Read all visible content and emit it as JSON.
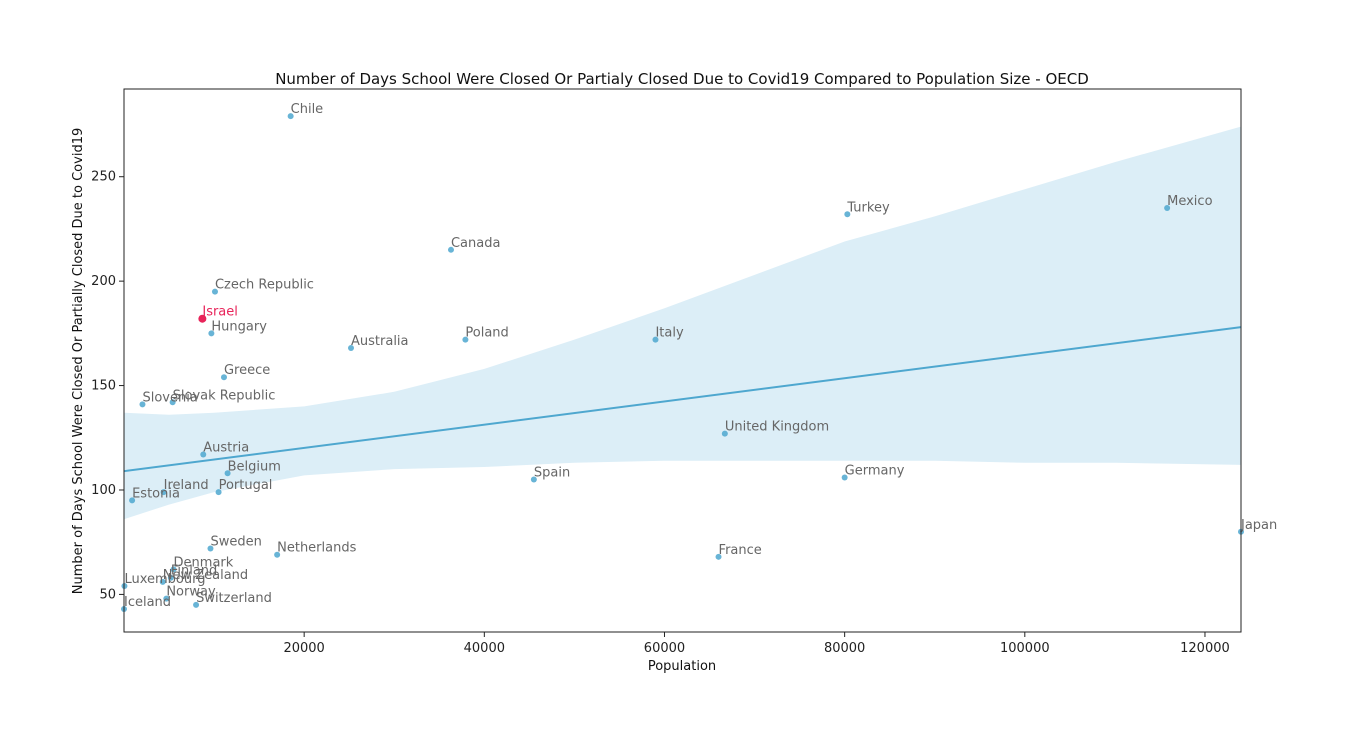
{
  "chart_data": {
    "type": "scatter",
    "title": "Number of Days School Were Closed Or Partialy Closed Due to Covid19 Compared to Population Size - OECD",
    "xlabel": "Population",
    "ylabel": "Number of Days School Were Closed Or Partially Closed Due to Covid19",
    "xlim": [
      0,
      124000
    ],
    "ylim": [
      32,
      292
    ],
    "xticks": [
      20000,
      40000,
      60000,
      80000,
      100000,
      120000
    ],
    "yticks": [
      50,
      100,
      150,
      200,
      250
    ],
    "grid": false,
    "colors": {
      "point": "#4ea7cf",
      "highlight": "#e8245a",
      "label": "#666666",
      "band": "#dceef7",
      "line": "#4ea7cf"
    },
    "regression": {
      "x": [
        0,
        124000
      ],
      "y": [
        109,
        178
      ]
    },
    "confidence_band": {
      "x": [
        0,
        5000,
        10000,
        20000,
        30000,
        40000,
        50000,
        60000,
        70000,
        80000,
        90000,
        100000,
        110000,
        124000
      ],
      "upper": [
        137,
        136,
        137,
        140,
        147,
        158,
        172,
        187,
        203,
        219,
        231,
        244,
        257,
        274
      ],
      "lower": [
        86,
        93,
        99,
        107,
        110,
        111,
        113,
        114,
        114,
        114,
        114,
        113,
        113,
        112
      ]
    },
    "points": [
      {
        "label": "Chile",
        "x": 18500,
        "y": 279
      },
      {
        "label": "Mexico",
        "x": 115800,
        "y": 235
      },
      {
        "label": "Turkey",
        "x": 80300,
        "y": 232
      },
      {
        "label": "Canada",
        "x": 36300,
        "y": 215
      },
      {
        "label": "Czech Republic",
        "x": 10100,
        "y": 195
      },
      {
        "label": "Israel",
        "x": 8700,
        "y": 182,
        "highlight": true
      },
      {
        "label": "Hungary",
        "x": 9700,
        "y": 175
      },
      {
        "label": "Poland",
        "x": 37900,
        "y": 172
      },
      {
        "label": "Italy",
        "x": 59000,
        "y": 172
      },
      {
        "label": "Australia",
        "x": 25200,
        "y": 168
      },
      {
        "label": "Greece",
        "x": 11100,
        "y": 154
      },
      {
        "label": "Slovak Republic",
        "x": 5400,
        "y": 142
      },
      {
        "label": "Slovenia",
        "x": 2050,
        "y": 141
      },
      {
        "label": "United Kingdom",
        "x": 66700,
        "y": 127
      },
      {
        "label": "Austria",
        "x": 8800,
        "y": 117
      },
      {
        "label": "Belgium",
        "x": 11500,
        "y": 108
      },
      {
        "label": "Germany",
        "x": 80000,
        "y": 106
      },
      {
        "label": "Spain",
        "x": 45500,
        "y": 105
      },
      {
        "label": "Ireland",
        "x": 4400,
        "y": 99
      },
      {
        "label": "Portugal",
        "x": 10500,
        "y": 99
      },
      {
        "label": "Estonia",
        "x": 900,
        "y": 95
      },
      {
        "label": "Japan",
        "x": 124000,
        "y": 80
      },
      {
        "label": "Sweden",
        "x": 9600,
        "y": 72
      },
      {
        "label": "Netherlands",
        "x": 17000,
        "y": 69
      },
      {
        "label": "France",
        "x": 66000,
        "y": 68
      },
      {
        "label": "Denmark",
        "x": 5500,
        "y": 62
      },
      {
        "label": "Finland",
        "x": 5200,
        "y": 58
      },
      {
        "label": "New Zealand",
        "x": 4300,
        "y": 56
      },
      {
        "label": "Luxembourg",
        "x": 50,
        "y": 54
      },
      {
        "label": "Norway",
        "x": 4700,
        "y": 48
      },
      {
        "label": "Switzerland",
        "x": 8000,
        "y": 45
      },
      {
        "label": "Iceland",
        "x": 0,
        "y": 43
      }
    ]
  }
}
